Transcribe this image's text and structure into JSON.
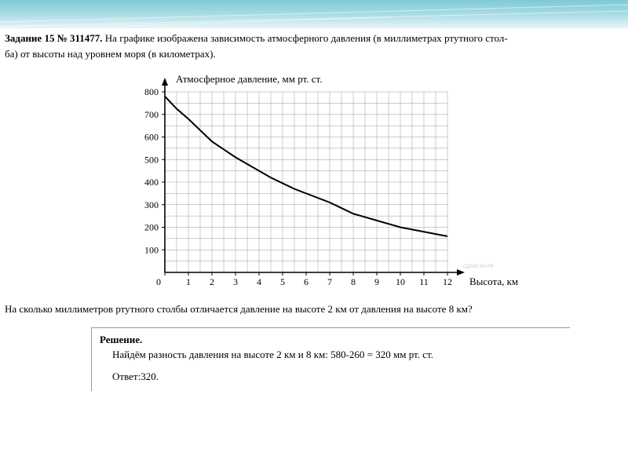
{
  "banner": {
    "bg_top": "#7ec9d6",
    "bg_mid": "#a9dce4",
    "bg_bot": "#e8f5f7",
    "line_color": "#ffffff",
    "line_opacity": 0.5
  },
  "task": {
    "label": "Задание 15 № 311477.",
    "text_part1": " На графике изображена зависимость атмосферного давления (в миллиметрах ртутного стол-",
    "text_part2": "ба) от высоты над уровнем моря (в километрах)."
  },
  "chart": {
    "type": "line",
    "title": "Атмосферное давление, мм  рт. ст.",
    "xlabel": "Высота, км",
    "xlim": [
      0,
      12
    ],
    "ylim": [
      0,
      800
    ],
    "xtick_step": 1,
    "ytick_step": 100,
    "minor_x_per_major": 2,
    "minor_y_per_major": 2,
    "axis_color": "#000000",
    "grid_color": "#9a9a9a",
    "grid_width": 0.5,
    "line_color": "#000000",
    "line_width": 2,
    "background_color": "#ffffff",
    "title_fontsize": 13,
    "xlabel_fontsize": 13,
    "tick_fontsize": 12,
    "data_x": [
      0,
      0.5,
      1,
      1.5,
      2,
      2.5,
      3,
      3.5,
      4,
      4.5,
      5,
      5.5,
      6,
      6.5,
      7,
      7.5,
      8,
      8.5,
      9,
      9.5,
      10,
      10.5,
      11,
      11.5,
      12
    ],
    "data_y": [
      780,
      725,
      680,
      630,
      580,
      545,
      510,
      480,
      450,
      420,
      395,
      370,
      350,
      330,
      310,
      285,
      260,
      245,
      230,
      215,
      200,
      190,
      180,
      170,
      160
    ],
    "watermark": "СДАМГИА.РФ"
  },
  "question": "На сколько миллиметров ртутного столбы отличается давление на высоте 2 км от давления на высоте 8 км?",
  "solution": {
    "title": "Решение.",
    "text": "Найдём разность давления на высоте 2 км и 8 км: 580-260 = 320 мм рт. ст.",
    "answer_label": "Ответ:",
    "answer_value": "320."
  }
}
